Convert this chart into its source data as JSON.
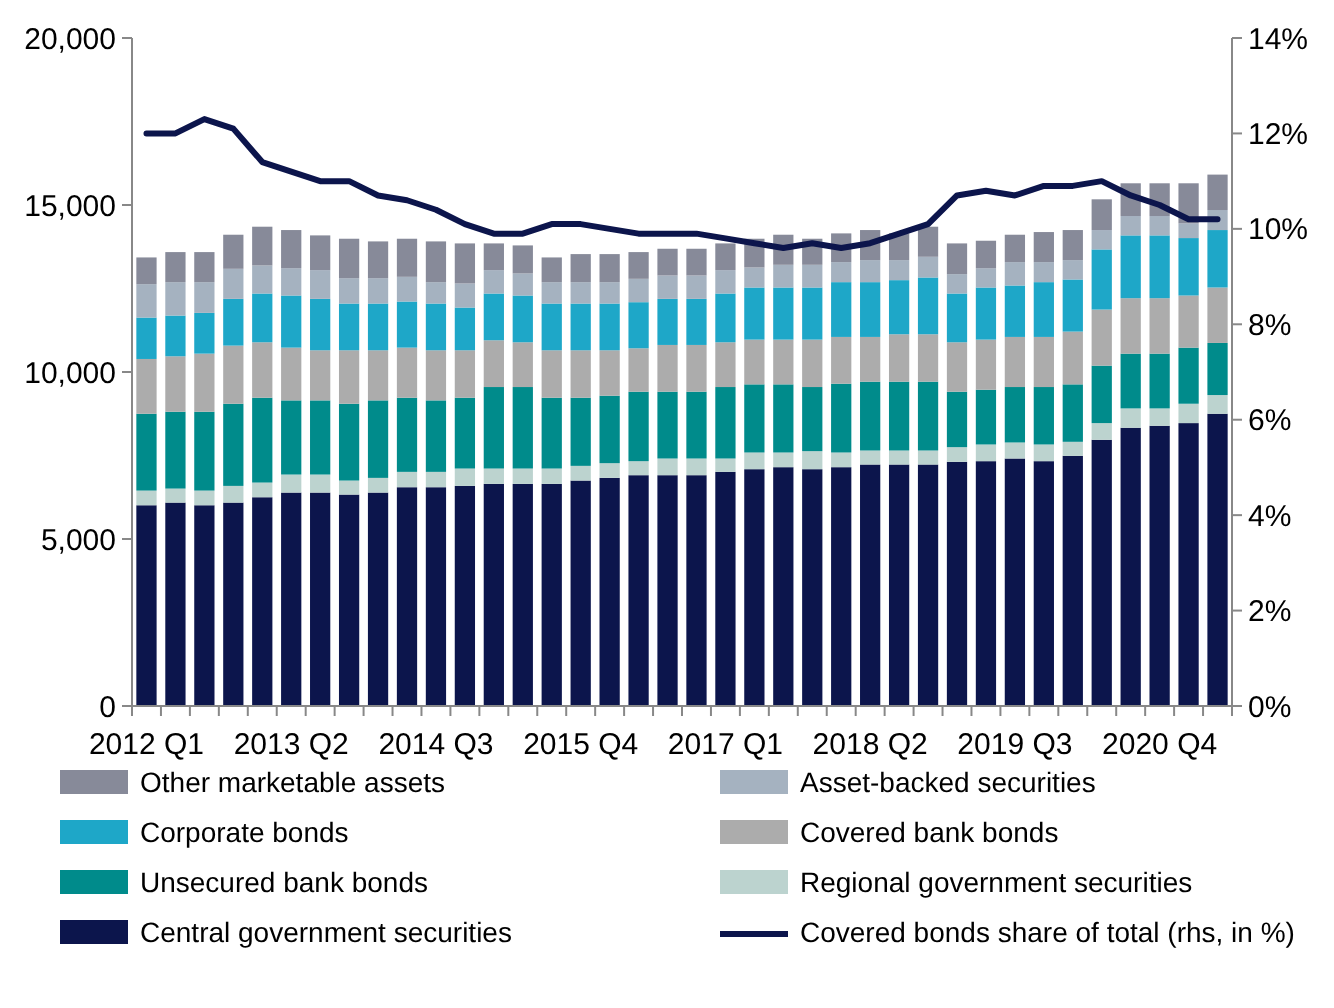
{
  "chart_data": {
    "type": "bar",
    "stacked": true,
    "legend": "bottom",
    "grid": false,
    "categories": [
      "2012 Q1",
      null,
      null,
      null,
      null,
      "2013 Q2",
      null,
      null,
      null,
      null,
      "2014 Q3",
      null,
      null,
      null,
      null,
      "2015 Q4",
      null,
      null,
      null,
      null,
      "2017 Q1",
      null,
      null,
      null,
      null,
      "2018 Q2",
      null,
      null,
      null,
      null,
      "2019 Q3",
      null,
      null,
      null,
      null,
      "2020 Q4",
      null,
      null
    ],
    "ylim": [
      0,
      20000
    ],
    "yticks": [
      {
        "value": 0,
        "label": "0"
      },
      {
        "value": 5000,
        "label": "5,000"
      },
      {
        "value": 10000,
        "label": "10,000"
      },
      {
        "value": 15000,
        "label": "15,000"
      },
      {
        "value": 20000,
        "label": "20,000"
      }
    ],
    "y2lim": [
      0,
      14
    ],
    "y2ticks": [
      {
        "value": 0,
        "label": "0%"
      },
      {
        "value": 2,
        "label": "2%"
      },
      {
        "value": 4,
        "label": "4%"
      },
      {
        "value": 6,
        "label": "6%"
      },
      {
        "value": 8,
        "label": "8%"
      },
      {
        "value": 10,
        "label": "10%"
      },
      {
        "value": 12,
        "label": "12%"
      },
      {
        "value": 14,
        "label": "14%"
      }
    ],
    "series": [
      {
        "name": "Central government securities",
        "color": "#0c154c",
        "values": [
          6010,
          6090,
          6010,
          6090,
          6250,
          6390,
          6390,
          6330,
          6390,
          6550,
          6550,
          6590,
          6650,
          6650,
          6650,
          6750,
          6830,
          6910,
          6910,
          6910,
          7010,
          7090,
          7150,
          7090,
          7150,
          7230,
          7230,
          7230,
          7310,
          7330,
          7410,
          7330,
          7490,
          7970,
          8330,
          8390,
          8470,
          8750
        ]
      },
      {
        "name": "Regional government securities",
        "color": "#bcd3cf",
        "values": [
          440,
          420,
          440,
          500,
          440,
          540,
          540,
          420,
          440,
          460,
          460,
          520,
          460,
          460,
          460,
          440,
          440,
          420,
          500,
          500,
          400,
          500,
          440,
          540,
          440,
          420,
          420,
          420,
          440,
          500,
          480,
          500,
          420,
          500,
          580,
          520,
          580,
          560
        ]
      },
      {
        "name": "Unsecured bank bonds",
        "color": "#008b8b",
        "values": [
          2300,
          2300,
          2360,
          2460,
          2540,
          2220,
          2220,
          2300,
          2320,
          2220,
          2140,
          2120,
          2440,
          2440,
          2120,
          2040,
          2020,
          2080,
          2000,
          2000,
          2140,
          2040,
          2040,
          1920,
          2060,
          2060,
          2060,
          2060,
          1660,
          1640,
          1660,
          1720,
          1720,
          1720,
          1640,
          1640,
          1680,
          1560
        ]
      },
      {
        "name": "Covered bank bonds",
        "color": "#acacac",
        "values": [
          1640,
          1660,
          1740,
          1740,
          1660,
          1580,
          1500,
          1600,
          1500,
          1500,
          1500,
          1420,
          1400,
          1340,
          1420,
          1420,
          1360,
          1300,
          1400,
          1400,
          1340,
          1340,
          1340,
          1420,
          1400,
          1340,
          1420,
          1420,
          1480,
          1500,
          1500,
          1500,
          1580,
          1680,
          1660,
          1660,
          1560,
          1660
        ]
      },
      {
        "name": "Corporate bonds",
        "color": "#1ea7c8",
        "values": [
          1240,
          1220,
          1220,
          1400,
          1460,
          1560,
          1540,
          1400,
          1400,
          1380,
          1400,
          1280,
          1400,
          1400,
          1400,
          1400,
          1400,
          1380,
          1380,
          1380,
          1460,
          1560,
          1560,
          1560,
          1640,
          1640,
          1620,
          1700,
          1460,
          1560,
          1540,
          1640,
          1560,
          1800,
          1880,
          1880,
          1720,
          1720
        ]
      },
      {
        "name": "Asset-backed securities",
        "color": "#a5b2c0",
        "values": [
          1000,
          1000,
          920,
          900,
          840,
          820,
          860,
          760,
          760,
          740,
          640,
          720,
          700,
          660,
          640,
          640,
          640,
          700,
          700,
          700,
          700,
          600,
          680,
          680,
          600,
          660,
          600,
          620,
          580,
          580,
          700,
          600,
          580,
          580,
          580,
          580,
          440,
          600
        ]
      },
      {
        "name": "Other marketable assets",
        "color": "#878a99",
        "values": [
          800,
          900,
          900,
          1020,
          1160,
          1140,
          1040,
          1180,
          1100,
          1140,
          1220,
          1200,
          800,
          840,
          740,
          840,
          840,
          800,
          800,
          800,
          800,
          860,
          900,
          780,
          860,
          900,
          800,
          900,
          920,
          820,
          820,
          900,
          900,
          920,
          980,
          980,
          1200,
          1060
        ]
      },
      {
        "name": "Covered bonds share of total (rhs, in %)",
        "type": "line",
        "axis": "y2",
        "color": "#0c154c",
        "values": [
          12.0,
          12.0,
          12.3,
          12.1,
          11.4,
          11.2,
          11.0,
          11.0,
          10.7,
          10.6,
          10.4,
          10.1,
          9.9,
          9.9,
          10.1,
          10.1,
          10.0,
          9.9,
          9.9,
          9.9,
          9.8,
          9.7,
          9.6,
          9.7,
          9.6,
          9.7,
          9.9,
          10.1,
          10.7,
          10.8,
          10.7,
          10.9,
          10.9,
          11.0,
          10.7,
          10.5,
          10.2,
          10.2
        ]
      }
    ]
  }
}
